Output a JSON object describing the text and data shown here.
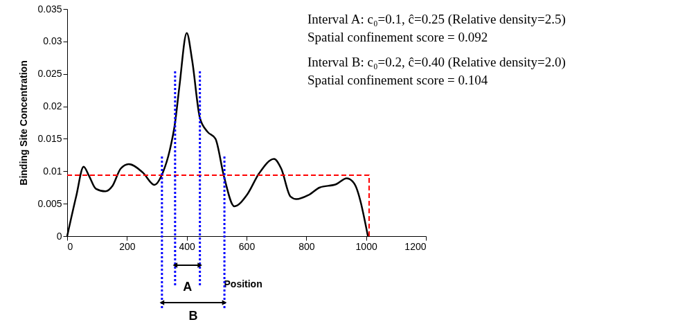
{
  "chart_data": {
    "type": "line",
    "xlabel": "Position",
    "ylabel": "Binding Site Concentration",
    "xlim": [
      0,
      1200
    ],
    "xticks": [
      0,
      200,
      400,
      600,
      800,
      1000,
      1200
    ],
    "ylim": [
      0,
      0.035
    ],
    "yticks": [
      0,
      0.005,
      0.01,
      0.015,
      0.02,
      0.025,
      0.03,
      0.035
    ],
    "grid": false,
    "marker": "none",
    "series": [
      {
        "color": "#000000",
        "line_style": "solid",
        "x": [
          0,
          30,
          55,
          73,
          96,
          128,
          151,
          179,
          206,
          253,
          292,
          320,
          343,
          361,
          375,
          400,
          418,
          444,
          469,
          496,
          524,
          559,
          602,
          641,
          692,
          716,
          747,
          767,
          806,
          845,
          900,
          935,
          959,
          1006
        ],
        "values": [
          0,
          0.0061,
          0.0107,
          0.0093,
          0.0073,
          0.0069,
          0.0077,
          0.0104,
          0.0111,
          0.0098,
          0.0079,
          0.0098,
          0.0132,
          0.0175,
          0.0229,
          0.0313,
          0.0271,
          0.0182,
          0.0161,
          0.015,
          0.0093,
          0.0046,
          0.0064,
          0.0096,
          0.0119,
          0.0104,
          0.0061,
          0.0057,
          0.0063,
          0.0075,
          0.008,
          0.0089,
          0.0082,
          0
        ]
      },
      {
        "color": "#ff0000",
        "line_style": "dashed",
        "x": [
          0,
          1010,
          1010
        ],
        "values": [
          0.0094,
          0.0094,
          0
        ]
      }
    ],
    "ref_lines": [
      {
        "axis": "x",
        "value": 317,
        "color": "#0000ff",
        "line_style": "dotted"
      },
      {
        "axis": "x",
        "value": 361,
        "color": "#0000ff",
        "line_style": "dotted"
      },
      {
        "axis": "x",
        "value": 444,
        "color": "#0000ff",
        "line_style": "dotted"
      },
      {
        "axis": "x",
        "value": 526,
        "color": "#0000ff",
        "line_style": "dotted"
      }
    ],
    "annotations": [
      "A",
      "B",
      "Interval A: c₀=0.1, ĉ=0.25  (Relative density=2.5)",
      "Spatial confinement score = 0.092",
      "Interval B: c₀=0.2, ĉ=0.40  (Relative density=2.0)",
      "Spatial confinement score = 0.104"
    ]
  }
}
